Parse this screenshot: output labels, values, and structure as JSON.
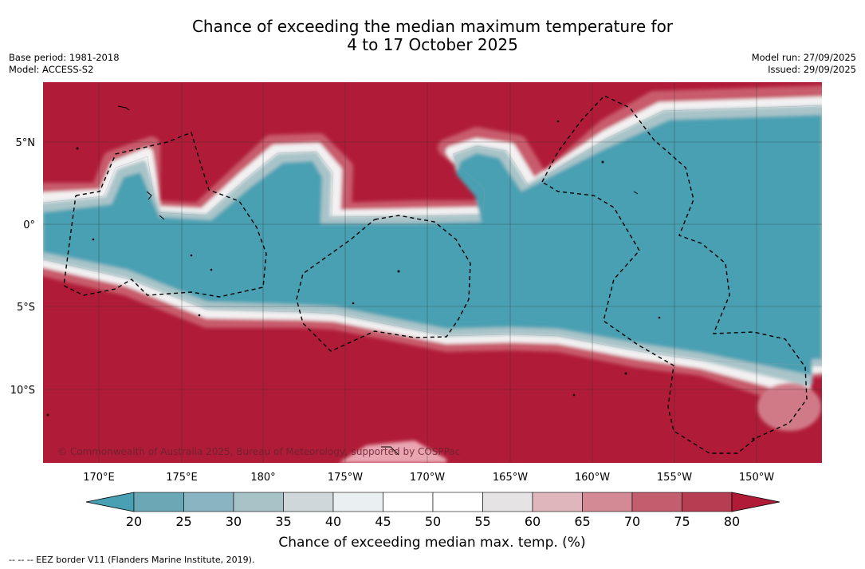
{
  "header": {
    "title_line1": "Chance of exceeding the median maximum temperature for",
    "title_line2": "4 to 17 October 2025",
    "base_period": "Base period: 1981-2018",
    "model": "Model: ACCESS-S2",
    "model_run": "Model run: 27/09/2025",
    "issued": "Issued: 29/09/2025"
  },
  "map": {
    "lat_labels": [
      "5°N",
      "0°",
      "5°S",
      "10°S"
    ],
    "lon_labels": [
      "170°E",
      "175°E",
      "180°",
      "175°W",
      "170°W",
      "165°W",
      "160°W",
      "155°W",
      "150°W"
    ],
    "copyright": "© Commonwealth of Australia 2025, Bureau of Meteorology, supported by COSPPac",
    "colors": {
      "high": "#b01c38",
      "low": "#48a0b2",
      "neutral": "#ffffff"
    }
  },
  "colorbar": {
    "ticks": [
      "20",
      "25",
      "30",
      "35",
      "40",
      "45",
      "50",
      "55",
      "60",
      "65",
      "70",
      "75",
      "80"
    ],
    "colors": [
      "#48a0b2",
      "#6aa8b6",
      "#88b5c1",
      "#a8c3c8",
      "#cfd7da",
      "#eaeff1",
      "#ffffff",
      "#ffffff",
      "#e6e3e5",
      "#dfb6bc",
      "#d48a95",
      "#c35e6e",
      "#b73d52",
      "#b01c38"
    ],
    "title": "Chance of exceeding median max. temp. (%)"
  },
  "footnote": "--  --  -- EEZ border V11 (Flanders Marine Institute, 2019)."
}
